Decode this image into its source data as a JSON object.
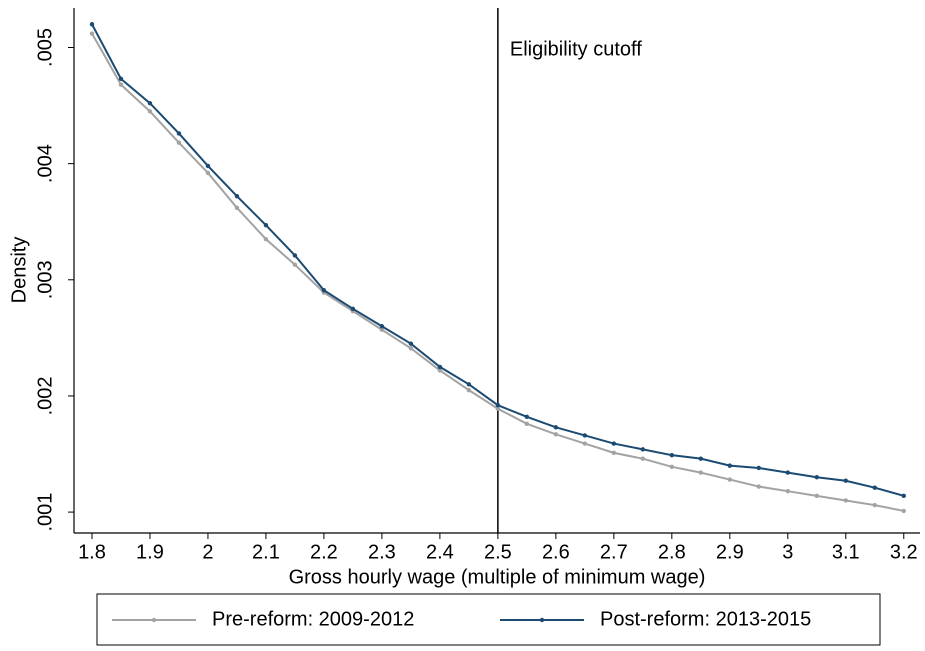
{
  "chart_data": {
    "type": "line",
    "x_label": "Gross hourly wage (multiple of minimum wage)",
    "y_label": "Density",
    "x": [
      1.8,
      1.85,
      1.9,
      1.95,
      2.0,
      2.05,
      2.1,
      2.15,
      2.2,
      2.25,
      2.3,
      2.35,
      2.4,
      2.45,
      2.5,
      2.55,
      2.6,
      2.65,
      2.7,
      2.75,
      2.8,
      2.85,
      2.9,
      2.95,
      3.0,
      3.05,
      3.1,
      3.15,
      3.2
    ],
    "series": [
      {
        "name": "Pre-reform: 2009-2012",
        "color": "#a3a3a3",
        "values": [
          0.00512,
          0.00468,
          0.00445,
          0.00418,
          0.00392,
          0.00362,
          0.00335,
          0.00313,
          0.00289,
          0.00273,
          0.00257,
          0.00241,
          0.00222,
          0.00205,
          0.00189,
          0.00176,
          0.00167,
          0.00159,
          0.00151,
          0.00146,
          0.00139,
          0.00134,
          0.00128,
          0.00122,
          0.00118,
          0.00114,
          0.0011,
          0.00106,
          0.00101
        ]
      },
      {
        "name": "Post-reform: 2013-2015",
        "color": "#1b4a72",
        "values": [
          0.0052,
          0.00473,
          0.00452,
          0.00426,
          0.00398,
          0.00372,
          0.00347,
          0.00321,
          0.00291,
          0.00275,
          0.0026,
          0.00245,
          0.00225,
          0.0021,
          0.00192,
          0.00182,
          0.00173,
          0.00166,
          0.00159,
          0.00154,
          0.00149,
          0.00146,
          0.0014,
          0.00138,
          0.00134,
          0.0013,
          0.00127,
          0.00121,
          0.00114
        ]
      }
    ],
    "annotations": [
      {
        "x": 2.5,
        "text": "Eligibility cutoff"
      }
    ],
    "xlim": [
      1.769,
      3.228
    ],
    "ylim": [
      0.00082,
      0.00534
    ],
    "xticks": [
      1.8,
      1.9,
      2,
      2.1,
      2.2,
      2.3,
      2.4,
      2.5,
      2.6,
      2.7,
      2.8,
      2.9,
      3,
      3.1,
      3.2
    ],
    "yticks": [
      {
        "value": 0.001,
        "label": ".001"
      },
      {
        "value": 0.002,
        "label": ".002"
      },
      {
        "value": 0.003,
        "label": ".003"
      },
      {
        "value": 0.004,
        "label": ".004"
      },
      {
        "value": 0.005,
        "label": ".005"
      }
    ],
    "legend": "bottom"
  }
}
